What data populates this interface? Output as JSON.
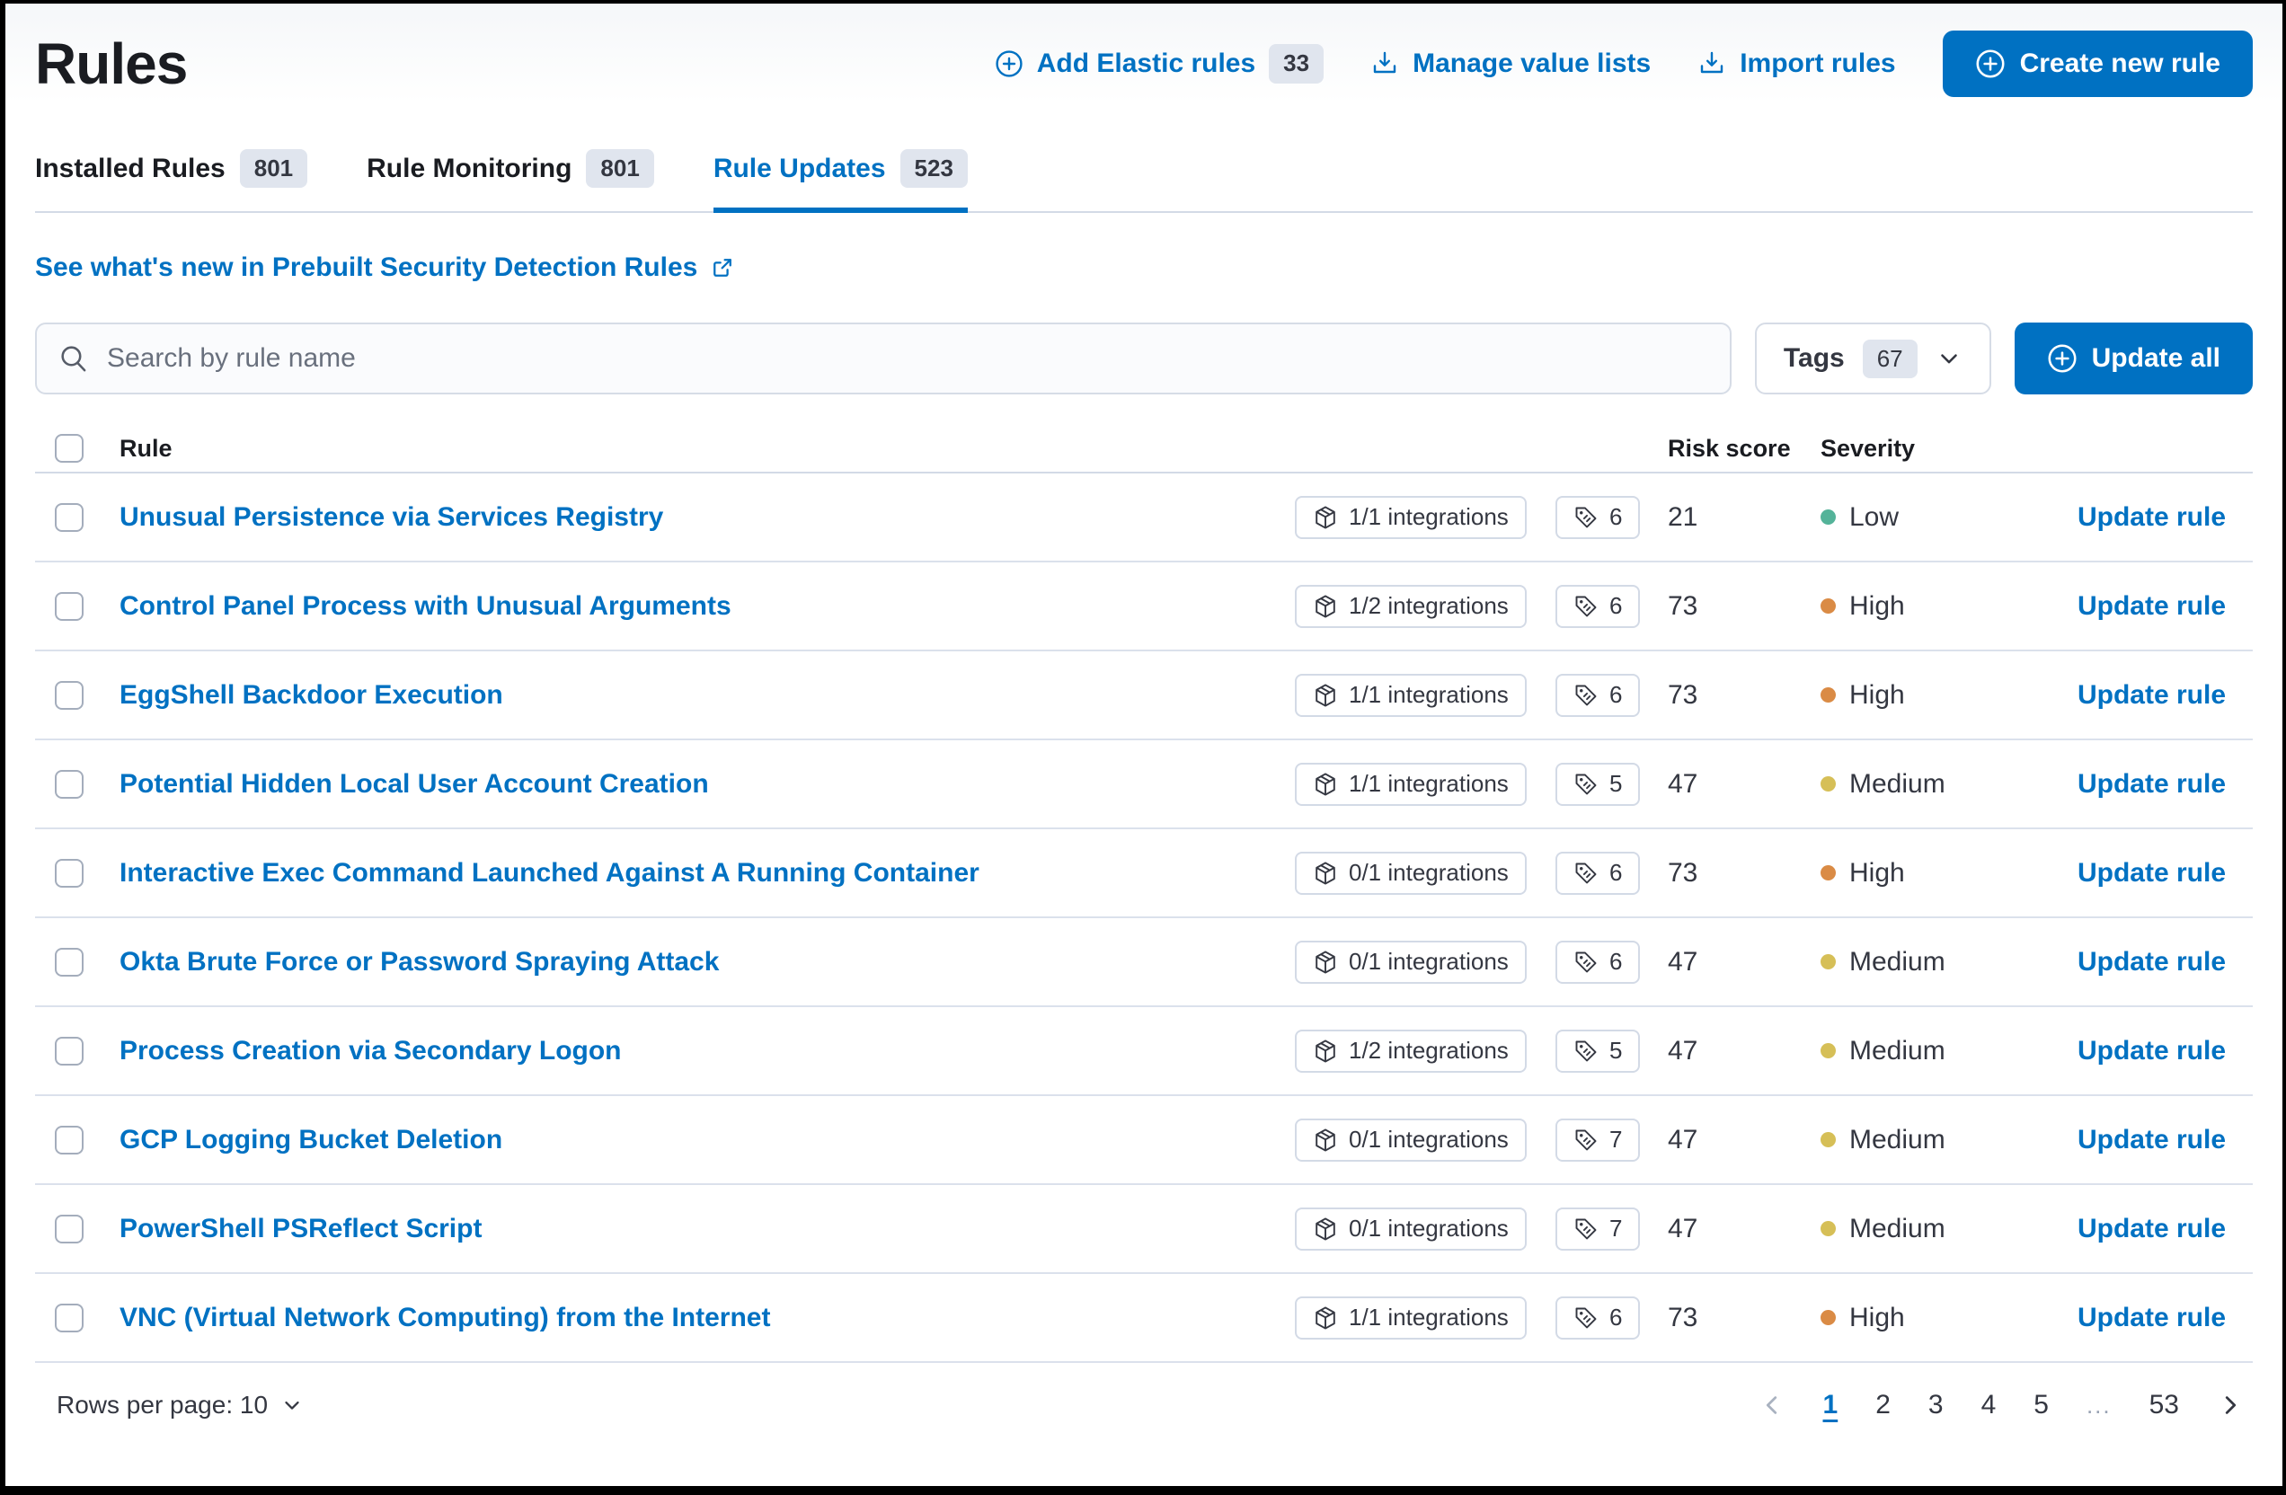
{
  "colors": {
    "primary": "#0071C2",
    "severity": {
      "Low": "#54B399",
      "Medium": "#D6BF57",
      "High": "#DA8B45"
    }
  },
  "header": {
    "title": "Rules",
    "add_elastic_rules_label": "Add Elastic rules",
    "add_elastic_rules_count": "33",
    "manage_value_lists_label": "Manage value lists",
    "import_rules_label": "Import rules",
    "create_new_rule_label": "Create new rule"
  },
  "tabs": [
    {
      "label": "Installed Rules",
      "count": "801",
      "active": false
    },
    {
      "label": "Rule Monitoring",
      "count": "801",
      "active": false
    },
    {
      "label": "Rule Updates",
      "count": "523",
      "active": true
    }
  ],
  "whats_new_link": "See what's new in Prebuilt Security Detection Rules",
  "controls": {
    "search_placeholder": "Search by rule name",
    "search_value": "",
    "tags_label": "Tags",
    "tags_count": "67",
    "update_all_label": "Update all"
  },
  "table": {
    "columns": {
      "rule": "Rule",
      "risk_score": "Risk score",
      "severity": "Severity"
    },
    "rows": [
      {
        "name": "Unusual Persistence via Services Registry",
        "integrations": "1/1 integrations",
        "tags": "6",
        "risk": "21",
        "severity": "Low",
        "action": "Update rule"
      },
      {
        "name": "Control Panel Process with Unusual Arguments",
        "integrations": "1/2 integrations",
        "tags": "6",
        "risk": "73",
        "severity": "High",
        "action": "Update rule"
      },
      {
        "name": "EggShell Backdoor Execution",
        "integrations": "1/1 integrations",
        "tags": "6",
        "risk": "73",
        "severity": "High",
        "action": "Update rule"
      },
      {
        "name": "Potential Hidden Local User Account Creation",
        "integrations": "1/1 integrations",
        "tags": "5",
        "risk": "47",
        "severity": "Medium",
        "action": "Update rule"
      },
      {
        "name": "Interactive Exec Command Launched Against A Running Container",
        "integrations": "0/1 integrations",
        "tags": "6",
        "risk": "73",
        "severity": "High",
        "action": "Update rule"
      },
      {
        "name": "Okta Brute Force or Password Spraying Attack",
        "integrations": "0/1 integrations",
        "tags": "6",
        "risk": "47",
        "severity": "Medium",
        "action": "Update rule"
      },
      {
        "name": "Process Creation via Secondary Logon",
        "integrations": "1/2 integrations",
        "tags": "5",
        "risk": "47",
        "severity": "Medium",
        "action": "Update rule"
      },
      {
        "name": "GCP Logging Bucket Deletion",
        "integrations": "0/1 integrations",
        "tags": "7",
        "risk": "47",
        "severity": "Medium",
        "action": "Update rule"
      },
      {
        "name": "PowerShell PSReflect Script",
        "integrations": "0/1 integrations",
        "tags": "7",
        "risk": "47",
        "severity": "Medium",
        "action": "Update rule"
      },
      {
        "name": "VNC (Virtual Network Computing) from the Internet",
        "integrations": "1/1 integrations",
        "tags": "6",
        "risk": "73",
        "severity": "High",
        "action": "Update rule"
      }
    ]
  },
  "footer": {
    "rows_per_page_label": "Rows per page: 10",
    "pages": [
      "1",
      "2",
      "3",
      "4",
      "5",
      "...",
      "53"
    ],
    "active_page": "1"
  }
}
